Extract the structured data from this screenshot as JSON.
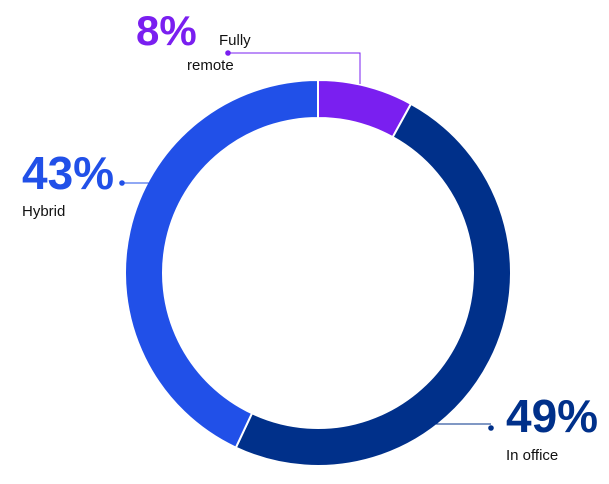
{
  "chart_data": {
    "type": "pie",
    "donut": true,
    "start_angle_deg": 0,
    "slices": [
      {
        "label_lines": [
          "Fully",
          "remote"
        ],
        "value": 8,
        "value_label": "8%",
        "color": "#7a1ff0"
      },
      {
        "label_lines": [
          "In office"
        ],
        "value": 49,
        "value_label": "49%",
        "color": "#00308a"
      },
      {
        "label_lines": [
          "Hybrid"
        ],
        "value": 43,
        "value_label": "43%",
        "color": "#2150e8"
      }
    ]
  }
}
